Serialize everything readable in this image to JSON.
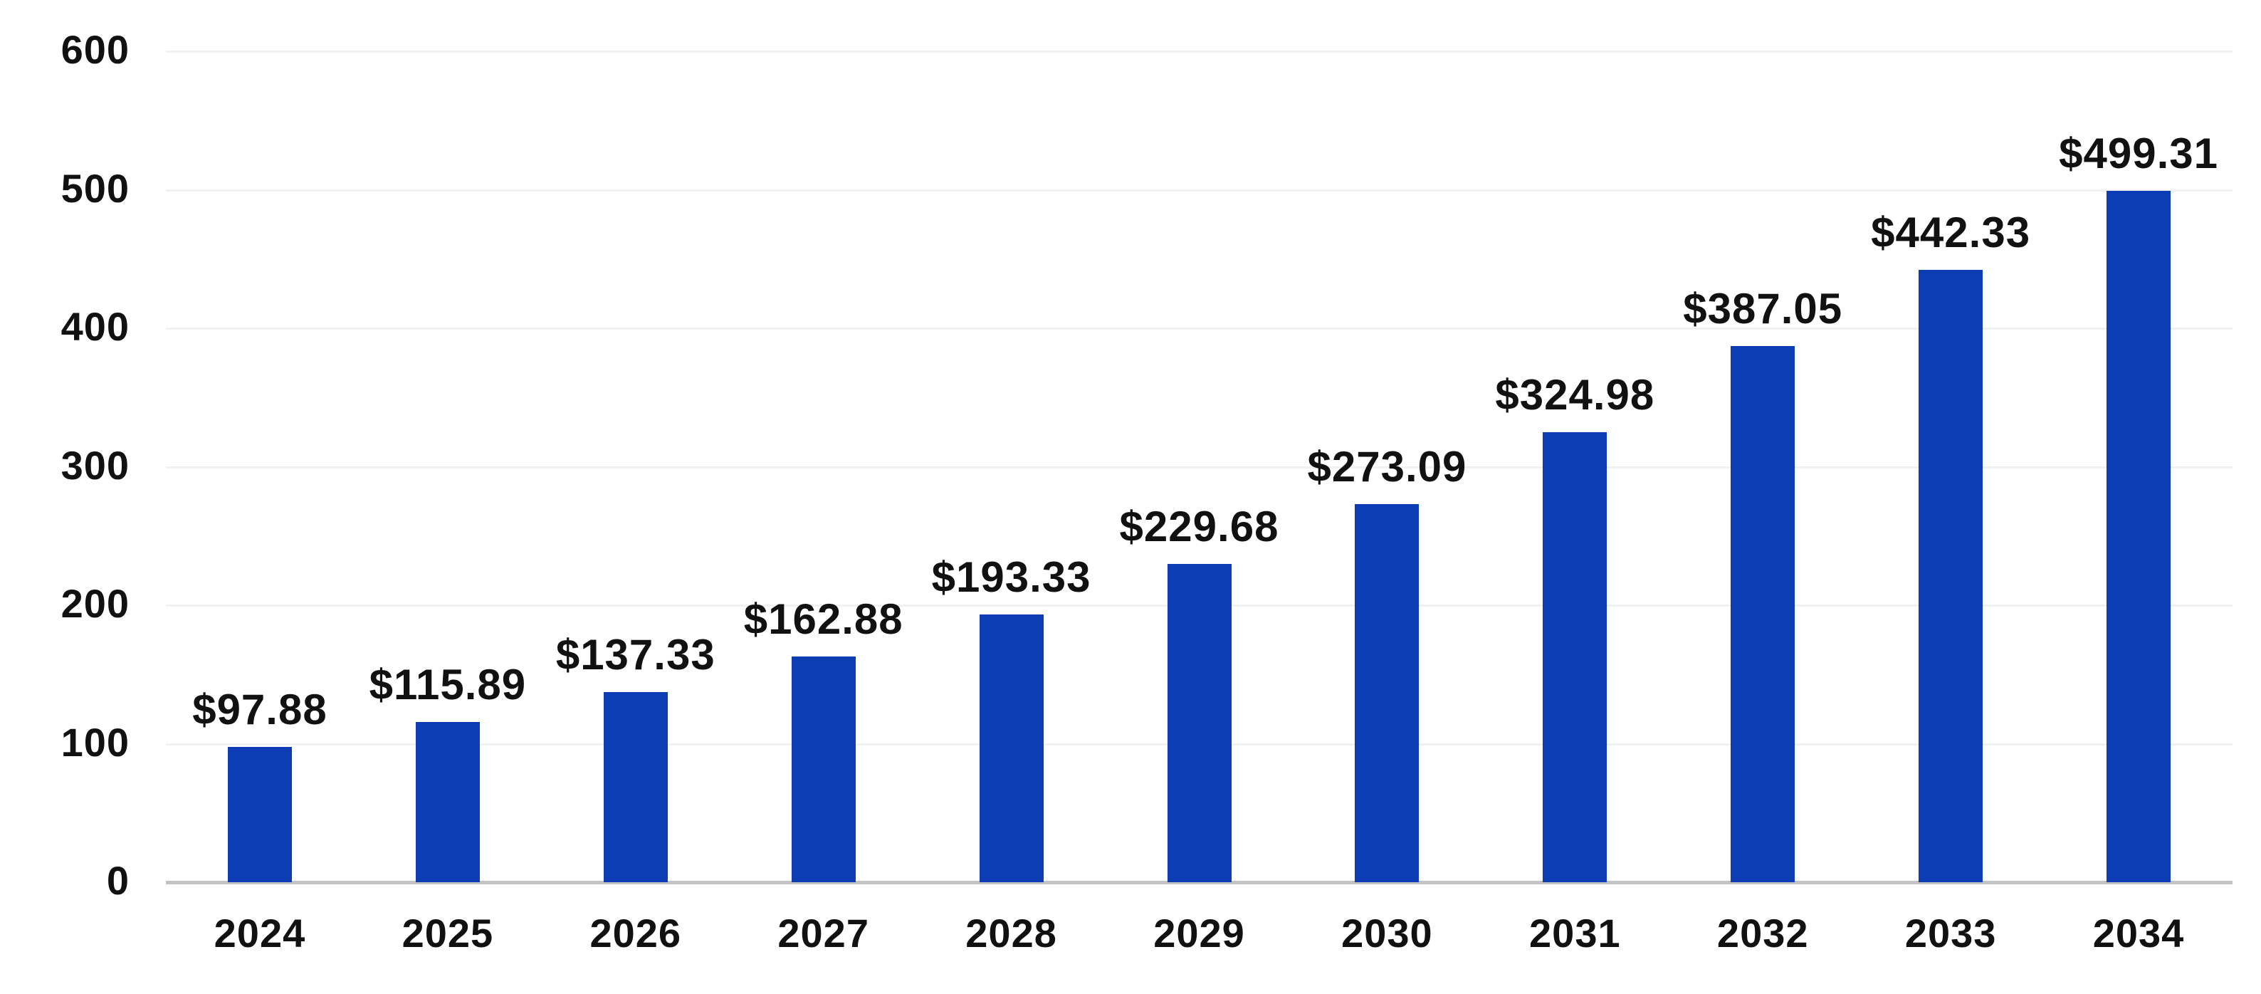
{
  "chart_data": {
    "type": "bar",
    "title": "",
    "xlabel": "",
    "ylabel": "",
    "categories": [
      "2024",
      "2025",
      "2026",
      "2027",
      "2028",
      "2029",
      "2030",
      "2031",
      "2032",
      "2033",
      "2034"
    ],
    "values": [
      97.88,
      115.89,
      137.33,
      162.88,
      193.33,
      229.68,
      273.09,
      324.98,
      387.05,
      442.33,
      499.31
    ],
    "value_labels": [
      "$97.88",
      "$115.89",
      "$137.33",
      "$162.88",
      "$193.33",
      "$229.68",
      "$273.09",
      "$324.98",
      "$387.05",
      "$442.33",
      "$499.31"
    ],
    "ylim": [
      0,
      600
    ],
    "yticks": [
      0,
      100,
      200,
      300,
      400,
      500,
      600
    ],
    "grid": "horizontal-light",
    "legend": "none",
    "colors": {
      "bar": "#0d3db5",
      "gridline": "#f1f1f1",
      "axis_line": "#c3c3c3",
      "text": "#111111",
      "background": "#ffffff"
    }
  }
}
